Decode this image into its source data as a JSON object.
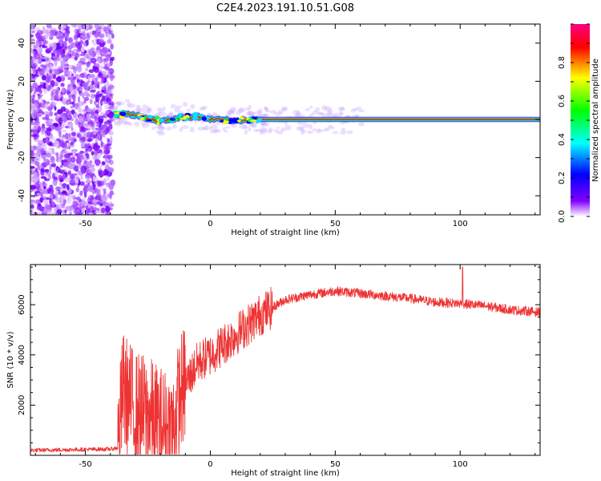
{
  "title": "C2E4.2023.191.10.51.G08",
  "chart_data": [
    {
      "type": "heatmap",
      "xlabel": "Height of straight line (km)",
      "ylabel": "Frequency (Hz)",
      "xlim": [
        -72,
        132
      ],
      "ylim": [
        -50,
        50
      ],
      "xticks": [
        -50,
        0,
        50,
        100
      ],
      "yticks": [
        -40,
        -20,
        0,
        20,
        40
      ],
      "colorbar": {
        "label": "Normalized spectral amplitude",
        "range": [
          0,
          1
        ],
        "ticks": [
          0.0,
          0.2,
          0.4,
          0.6,
          0.8
        ],
        "colors": [
          "#ffffff",
          "#8000ff",
          "#0000ff",
          "#00ffff",
          "#00ff00",
          "#ffff00",
          "#ff0000",
          "#ff0080"
        ]
      },
      "noise_region_x": [
        -72,
        -39
      ],
      "trace": [
        {
          "x": -38,
          "f": 2.5
        },
        {
          "x": -33,
          "f": 3.0
        },
        {
          "x": -28,
          "f": 1.5
        },
        {
          "x": -20,
          "f": -1.0
        },
        {
          "x": -12,
          "f": 1.0
        },
        {
          "x": -5,
          "f": 1.5
        },
        {
          "x": 0,
          "f": 0.0
        },
        {
          "x": 8,
          "f": -0.5
        },
        {
          "x": 20,
          "f": 0.0
        },
        {
          "x": 50,
          "f": 0.0
        },
        {
          "x": 132,
          "f": 0.0
        }
      ]
    },
    {
      "type": "line",
      "xlabel": "Height of straight line (km)",
      "ylabel": "SNR (10 * v/v)",
      "xlim": [
        -72,
        132
      ],
      "ylim": [
        0,
        7600
      ],
      "xticks": [
        -50,
        0,
        50,
        100
      ],
      "yticks": [
        2000,
        4000,
        6000
      ],
      "series_color": "#ee3333",
      "envelope": [
        {
          "x": -72,
          "y": 200
        },
        {
          "x": -40,
          "y": 250
        },
        {
          "x": -37,
          "y": 300
        },
        {
          "x": -35,
          "y": 2600
        },
        {
          "x": -30,
          "y": 1800
        },
        {
          "x": -25,
          "y": 1600
        },
        {
          "x": -20,
          "y": 1200
        },
        {
          "x": -15,
          "y": 1000
        },
        {
          "x": -12,
          "y": 2500
        },
        {
          "x": -5,
          "y": 3700
        },
        {
          "x": 0,
          "y": 4000
        },
        {
          "x": 10,
          "y": 4800
        },
        {
          "x": 20,
          "y": 5600
        },
        {
          "x": 30,
          "y": 6200
        },
        {
          "x": 40,
          "y": 6400
        },
        {
          "x": 50,
          "y": 6550
        },
        {
          "x": 60,
          "y": 6450
        },
        {
          "x": 70,
          "y": 6350
        },
        {
          "x": 80,
          "y": 6250
        },
        {
          "x": 90,
          "y": 6100
        },
        {
          "x": 100,
          "y": 6050
        },
        {
          "x": 110,
          "y": 5950
        },
        {
          "x": 120,
          "y": 5800
        },
        {
          "x": 132,
          "y": 5700
        }
      ],
      "spike": {
        "x": 101,
        "y": 7500
      }
    }
  ]
}
